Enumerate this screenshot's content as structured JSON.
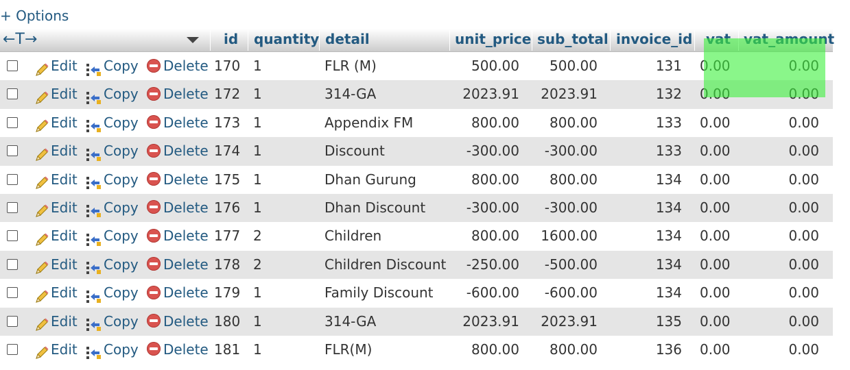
{
  "options_label": "+ Options",
  "header": {
    "arrows": "←T→",
    "columns": [
      "id",
      "quantity",
      "detail",
      "unit_price",
      "sub_total",
      "invoice_id",
      "vat",
      "vat_amount"
    ]
  },
  "actions": {
    "edit": "Edit",
    "copy": "Copy",
    "delete": "Delete"
  },
  "rows": [
    {
      "id": "170",
      "quantity": "1",
      "detail": "FLR (M)",
      "unit_price": "500.00",
      "sub_total": "500.00",
      "invoice_id": "131",
      "vat": "0.00",
      "vat_amount": "0.00"
    },
    {
      "id": "172",
      "quantity": "1",
      "detail": "314-GA",
      "unit_price": "2023.91",
      "sub_total": "2023.91",
      "invoice_id": "132",
      "vat": "0.00",
      "vat_amount": "0.00"
    },
    {
      "id": "173",
      "quantity": "1",
      "detail": "Appendix FM",
      "unit_price": "800.00",
      "sub_total": "800.00",
      "invoice_id": "133",
      "vat": "0.00",
      "vat_amount": "0.00"
    },
    {
      "id": "174",
      "quantity": "1",
      "detail": "Discount",
      "unit_price": "-300.00",
      "sub_total": "-300.00",
      "invoice_id": "133",
      "vat": "0.00",
      "vat_amount": "0.00"
    },
    {
      "id": "175",
      "quantity": "1",
      "detail": "Dhan Gurung",
      "unit_price": "800.00",
      "sub_total": "800.00",
      "invoice_id": "134",
      "vat": "0.00",
      "vat_amount": "0.00"
    },
    {
      "id": "176",
      "quantity": "1",
      "detail": "Dhan Discount",
      "unit_price": "-300.00",
      "sub_total": "-300.00",
      "invoice_id": "134",
      "vat": "0.00",
      "vat_amount": "0.00"
    },
    {
      "id": "177",
      "quantity": "2",
      "detail": "Children",
      "unit_price": "800.00",
      "sub_total": "1600.00",
      "invoice_id": "134",
      "vat": "0.00",
      "vat_amount": "0.00"
    },
    {
      "id": "178",
      "quantity": "2",
      "detail": "Children Discount",
      "unit_price": "-250.00",
      "sub_total": "-500.00",
      "invoice_id": "134",
      "vat": "0.00",
      "vat_amount": "0.00"
    },
    {
      "id": "179",
      "quantity": "1",
      "detail": "Family Discount",
      "unit_price": "-600.00",
      "sub_total": "-600.00",
      "invoice_id": "134",
      "vat": "0.00",
      "vat_amount": "0.00"
    },
    {
      "id": "180",
      "quantity": "1",
      "detail": "314-GA",
      "unit_price": "2023.91",
      "sub_total": "2023.91",
      "invoice_id": "135",
      "vat": "0.00",
      "vat_amount": "0.00"
    },
    {
      "id": "181",
      "quantity": "1",
      "detail": "FLR(M)",
      "unit_price": "800.00",
      "sub_total": "800.00",
      "invoice_id": "136",
      "vat": "0.00",
      "vat_amount": "0.00"
    }
  ],
  "colors": {
    "link": "#235a81",
    "row_alt": "#e5e5e5",
    "highlight": "#3cf03c",
    "delete": "#d9534f"
  }
}
